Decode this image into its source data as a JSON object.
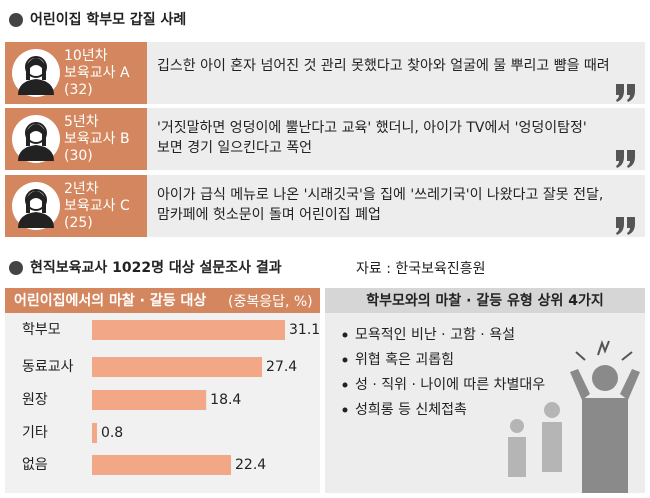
{
  "title": "어린이집 학부모 갑질 사례",
  "cases": [
    {
      "career": "10년차",
      "role": "보육교사 A",
      "age": "(32)",
      "quote": [
        "깁스한 아이 혼자 넘어진 것 관리 못했다고 찾아와 얼굴에 물 뿌리고 뺨을 때려"
      ]
    },
    {
      "career": "5년차",
      "role": "보육교사 B",
      "age": "(30)",
      "quote": [
        "'거짓말하면 엉덩이에 뿔난다고 교육' 했더니, 아이가 TV에서 '엉덩이탐정'",
        "보면 경기 일으킨다고 폭언"
      ]
    },
    {
      "career": "2년차",
      "role": "보육교사 C",
      "age": "(25)",
      "quote": [
        "아이가 급식 메뉴로 나온 '시래깃국'을 집에 '쓰레기국'이 나왔다고 잘못 전달,",
        "맘카페에 헛소문이 돌며 어린이집 폐업"
      ]
    }
  ],
  "survey": {
    "title": "현직보육교사 1022명 대상 설문조사 결과",
    "source": "자료 : 한국보육진흥원"
  },
  "chart_data": {
    "type": "bar",
    "orientation": "horizontal",
    "title": "어린이집에서의 마찰 · 갈등 대상",
    "subtitle": "(중복응답, %)",
    "categories": [
      "학부모",
      "동료교사",
      "원장",
      "기타",
      "없음"
    ],
    "values": [
      31.1,
      27.4,
      18.4,
      0.8,
      22.4
    ],
    "color": "#f2a886"
  },
  "types": {
    "title": "학부모와의 마찰 · 갈등 유형 상위 4가지",
    "items": [
      "모욕적인 비난 · 고함 · 욕설",
      "위협 혹은 괴롭힘",
      "성 · 직위 · 나이에 따른 차별대우",
      "성희롱 등 신체접촉"
    ]
  }
}
